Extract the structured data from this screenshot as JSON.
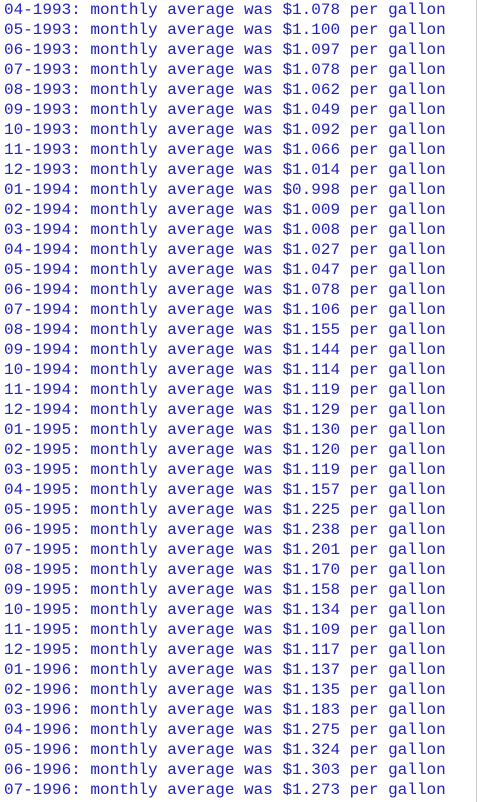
{
  "output": {
    "text_color": "#2020c0",
    "background": "#ffffff",
    "lines": [
      {
        "month": "04-1993",
        "price": "$1.078"
      },
      {
        "month": "05-1993",
        "price": "$1.100"
      },
      {
        "month": "06-1993",
        "price": "$1.097"
      },
      {
        "month": "07-1993",
        "price": "$1.078"
      },
      {
        "month": "08-1993",
        "price": "$1.062"
      },
      {
        "month": "09-1993",
        "price": "$1.049"
      },
      {
        "month": "10-1993",
        "price": "$1.092"
      },
      {
        "month": "11-1993",
        "price": "$1.066"
      },
      {
        "month": "12-1993",
        "price": "$1.014"
      },
      {
        "month": "01-1994",
        "price": "$0.998"
      },
      {
        "month": "02-1994",
        "price": "$1.009"
      },
      {
        "month": "03-1994",
        "price": "$1.008"
      },
      {
        "month": "04-1994",
        "price": "$1.027"
      },
      {
        "month": "05-1994",
        "price": "$1.047"
      },
      {
        "month": "06-1994",
        "price": "$1.078"
      },
      {
        "month": "07-1994",
        "price": "$1.106"
      },
      {
        "month": "08-1994",
        "price": "$1.155"
      },
      {
        "month": "09-1994",
        "price": "$1.144"
      },
      {
        "month": "10-1994",
        "price": "$1.114"
      },
      {
        "month": "11-1994",
        "price": "$1.119"
      },
      {
        "month": "12-1994",
        "price": "$1.129"
      },
      {
        "month": "01-1995",
        "price": "$1.130"
      },
      {
        "month": "02-1995",
        "price": "$1.120"
      },
      {
        "month": "03-1995",
        "price": "$1.119"
      },
      {
        "month": "04-1995",
        "price": "$1.157"
      },
      {
        "month": "05-1995",
        "price": "$1.225"
      },
      {
        "month": "06-1995",
        "price": "$1.238"
      },
      {
        "month": "07-1995",
        "price": "$1.201"
      },
      {
        "month": "08-1995",
        "price": "$1.170"
      },
      {
        "month": "09-1995",
        "price": "$1.158"
      },
      {
        "month": "10-1995",
        "price": "$1.134"
      },
      {
        "month": "11-1995",
        "price": "$1.109"
      },
      {
        "month": "12-1995",
        "price": "$1.117"
      },
      {
        "month": "01-1996",
        "price": "$1.137"
      },
      {
        "month": "02-1996",
        "price": "$1.135"
      },
      {
        "month": "03-1996",
        "price": "$1.183"
      },
      {
        "month": "04-1996",
        "price": "$1.275"
      },
      {
        "month": "05-1996",
        "price": "$1.324"
      },
      {
        "month": "06-1996",
        "price": "$1.303"
      },
      {
        "month": "07-1996",
        "price": "$1.273"
      }
    ],
    "phrase_before_price": ": monthly average was ",
    "phrase_after_price": " per gallon"
  }
}
